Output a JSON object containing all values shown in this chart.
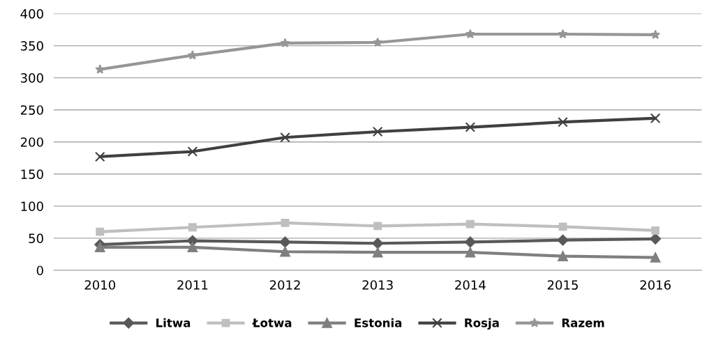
{
  "chart_data": {
    "type": "line",
    "categories": [
      "2010",
      "2011",
      "2012",
      "2013",
      "2014",
      "2015",
      "2016"
    ],
    "series": [
      {
        "name": "Litwa",
        "color": "#595959",
        "marker": "diamond",
        "values": [
          40,
          46,
          44,
          42,
          44,
          47,
          49
        ]
      },
      {
        "name": "Łotwa",
        "color": "#bfbfbf",
        "marker": "square",
        "values": [
          60,
          67,
          74,
          69,
          72,
          68,
          62
        ]
      },
      {
        "name": "Estonia",
        "color": "#7f7f7f",
        "marker": "triangle",
        "values": [
          36,
          36,
          29,
          28,
          28,
          22,
          20
        ]
      },
      {
        "name": "Rosja",
        "color": "#404040",
        "marker": "cross",
        "values": [
          177,
          185,
          207,
          216,
          223,
          231,
          237
        ]
      },
      {
        "name": "Razem",
        "color": "#969696",
        "marker": "star",
        "values": [
          313,
          335,
          354,
          355,
          368,
          368,
          367
        ]
      }
    ],
    "ylim": [
      0,
      400
    ],
    "yticks": [
      0,
      50,
      100,
      150,
      200,
      250,
      300,
      350,
      400
    ],
    "grid": "y",
    "legend": "bottom",
    "line_style": "solid"
  }
}
